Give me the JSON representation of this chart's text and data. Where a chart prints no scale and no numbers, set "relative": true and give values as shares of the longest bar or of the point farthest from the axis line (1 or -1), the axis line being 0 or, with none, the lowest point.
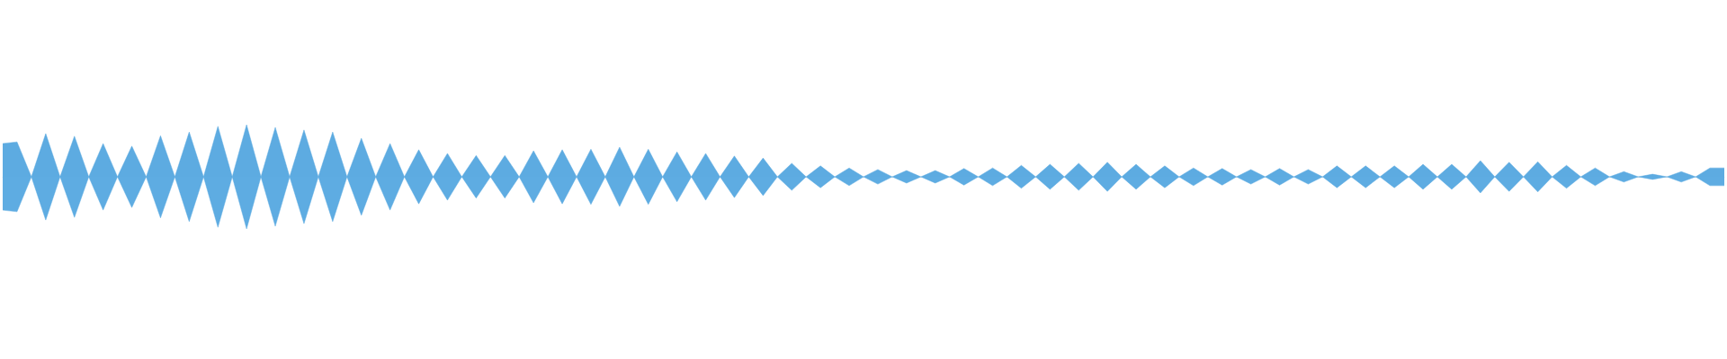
{
  "chart_data": {
    "type": "area",
    "relative": true,
    "marker": "none",
    "categories": [
      null,
      null,
      null,
      null,
      null,
      null,
      null,
      null,
      null,
      null,
      null,
      null,
      null,
      null,
      null,
      null,
      null,
      null,
      null,
      null,
      null,
      null,
      null,
      null,
      null,
      null,
      null,
      null,
      null,
      null,
      null,
      null,
      null,
      null,
      null,
      null,
      null,
      null,
      null,
      null,
      null,
      null,
      null,
      null,
      null,
      null,
      null,
      null,
      null,
      null,
      null,
      null,
      null,
      null,
      null,
      null,
      null,
      null,
      null,
      null,
      null,
      null,
      null,
      null,
      null,
      null,
      null,
      null,
      null,
      null,
      null,
      null,
      null,
      null,
      null,
      null,
      null,
      null,
      null,
      null,
      null,
      null,
      null,
      null,
      null,
      null,
      null,
      null,
      null,
      null,
      null,
      null,
      null,
      null,
      null,
      null,
      null,
      null,
      null,
      null,
      null,
      null,
      null,
      null,
      null,
      null,
      null,
      null,
      null,
      null,
      null,
      null,
      null,
      null,
      null,
      null,
      null,
      null,
      null,
      null,
      null
    ],
    "series": [
      {
        "color": "#5dabe1",
        "values": [
          0.64,
          0.67,
          0,
          0.83,
          0,
          0.78,
          0,
          0.64,
          0,
          0.59,
          0,
          0.79,
          0,
          0.86,
          0,
          0.97,
          0,
          1,
          0,
          0.95,
          0,
          0.9,
          0,
          0.86,
          0,
          0.74,
          0,
          0.64,
          0,
          0.52,
          0,
          0.45,
          0,
          0.41,
          0,
          0.41,
          0,
          0.5,
          0,
          0.52,
          0,
          0.53,
          0,
          0.57,
          0,
          0.53,
          0,
          0.48,
          0,
          0.45,
          0,
          0.4,
          0,
          0.36,
          0,
          0.26,
          0,
          0.21,
          0,
          0.17,
          0,
          0.14,
          0,
          0.12,
          0,
          0.12,
          0,
          0.16,
          0,
          0.17,
          0,
          0.22,
          0,
          0.24,
          0,
          0.26,
          0,
          0.28,
          0,
          0.24,
          0,
          0.21,
          0,
          0.17,
          0,
          0.16,
          0,
          0.14,
          0,
          0.16,
          0,
          0.14,
          0,
          0.21,
          0,
          0.21,
          0,
          0.21,
          0,
          0.24,
          0,
          0.24,
          0,
          0.31,
          0,
          0.28,
          0,
          0.29,
          0,
          0.22,
          0,
          0.17,
          0,
          0.1,
          0,
          0.05,
          0,
          0.1,
          0,
          0.17,
          0.17
        ]
      },
      {
        "color": "#5eace2",
        "values": [
          -0.64,
          -0.67,
          0,
          -0.83,
          0,
          -0.78,
          0,
          -0.64,
          0,
          -0.59,
          0,
          -0.79,
          0,
          -0.86,
          0,
          -0.97,
          0,
          -1,
          0,
          -0.95,
          0,
          -0.9,
          0,
          -0.86,
          0,
          -0.74,
          0,
          -0.64,
          0,
          -0.52,
          0,
          -0.45,
          0,
          -0.41,
          0,
          -0.41,
          0,
          -0.5,
          0,
          -0.52,
          0,
          -0.53,
          0,
          -0.57,
          0,
          -0.53,
          0,
          -0.48,
          0,
          -0.45,
          0,
          -0.4,
          0,
          -0.36,
          0,
          -0.26,
          0,
          -0.21,
          0,
          -0.17,
          0,
          -0.14,
          0,
          -0.12,
          0,
          -0.12,
          0,
          -0.16,
          0,
          -0.17,
          0,
          -0.22,
          0,
          -0.24,
          0,
          -0.26,
          0,
          -0.28,
          0,
          -0.24,
          0,
          -0.21,
          0,
          -0.17,
          0,
          -0.16,
          0,
          -0.14,
          0,
          -0.16,
          0,
          -0.14,
          0,
          -0.21,
          0,
          -0.21,
          0,
          -0.21,
          0,
          -0.24,
          0,
          -0.24,
          0,
          -0.31,
          0,
          -0.28,
          0,
          -0.29,
          0,
          -0.22,
          0,
          -0.17,
          0,
          -0.1,
          0,
          -0.05,
          0,
          -0.1,
          0,
          -0.17,
          -0.17
        ]
      }
    ]
  }
}
